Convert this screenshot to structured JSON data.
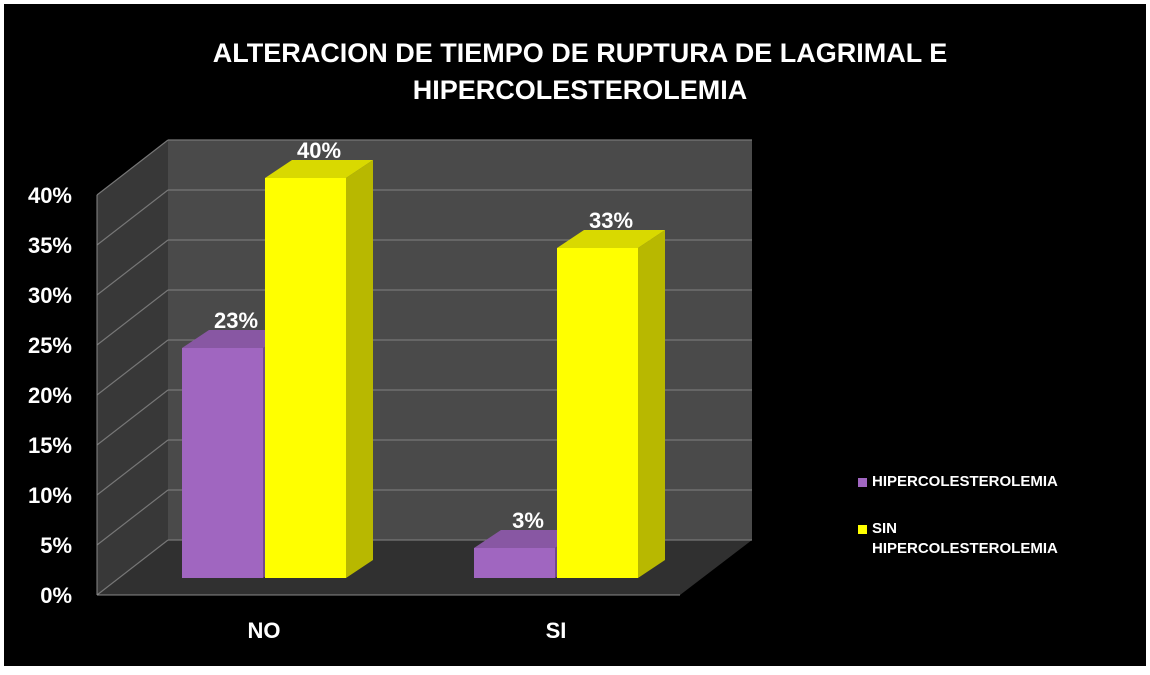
{
  "chart_data": {
    "type": "bar3d",
    "title": "ALTERACION DE TIEMPO DE RUPTURA DE LAGRIMAL E HIPERCOLESTEROLEMIA",
    "categories": [
      "NO",
      "SI"
    ],
    "series": [
      {
        "name": "HIPERCOLESTEROLEMIA",
        "color": "#a066c0",
        "values": [
          23,
          3
        ],
        "value_labels": [
          "23%",
          "3%"
        ]
      },
      {
        "name": "SIN HIPERCOLESTEROLEMIA",
        "color": "#ffff00",
        "values": [
          40,
          33
        ],
        "value_labels": [
          "40%",
          "33%"
        ]
      }
    ],
    "ylim": [
      0,
      40
    ],
    "yticks": [
      {
        "value": 0,
        "label": "0%"
      },
      {
        "value": 5,
        "label": "5%"
      },
      {
        "value": 10,
        "label": "10%"
      },
      {
        "value": 15,
        "label": "15%"
      },
      {
        "value": 20,
        "label": "20%"
      },
      {
        "value": 25,
        "label": "25%"
      },
      {
        "value": 30,
        "label": "30%"
      },
      {
        "value": 35,
        "label": "35%"
      },
      {
        "value": 40,
        "label": "40%"
      }
    ],
    "grid": true,
    "legend": "right"
  }
}
